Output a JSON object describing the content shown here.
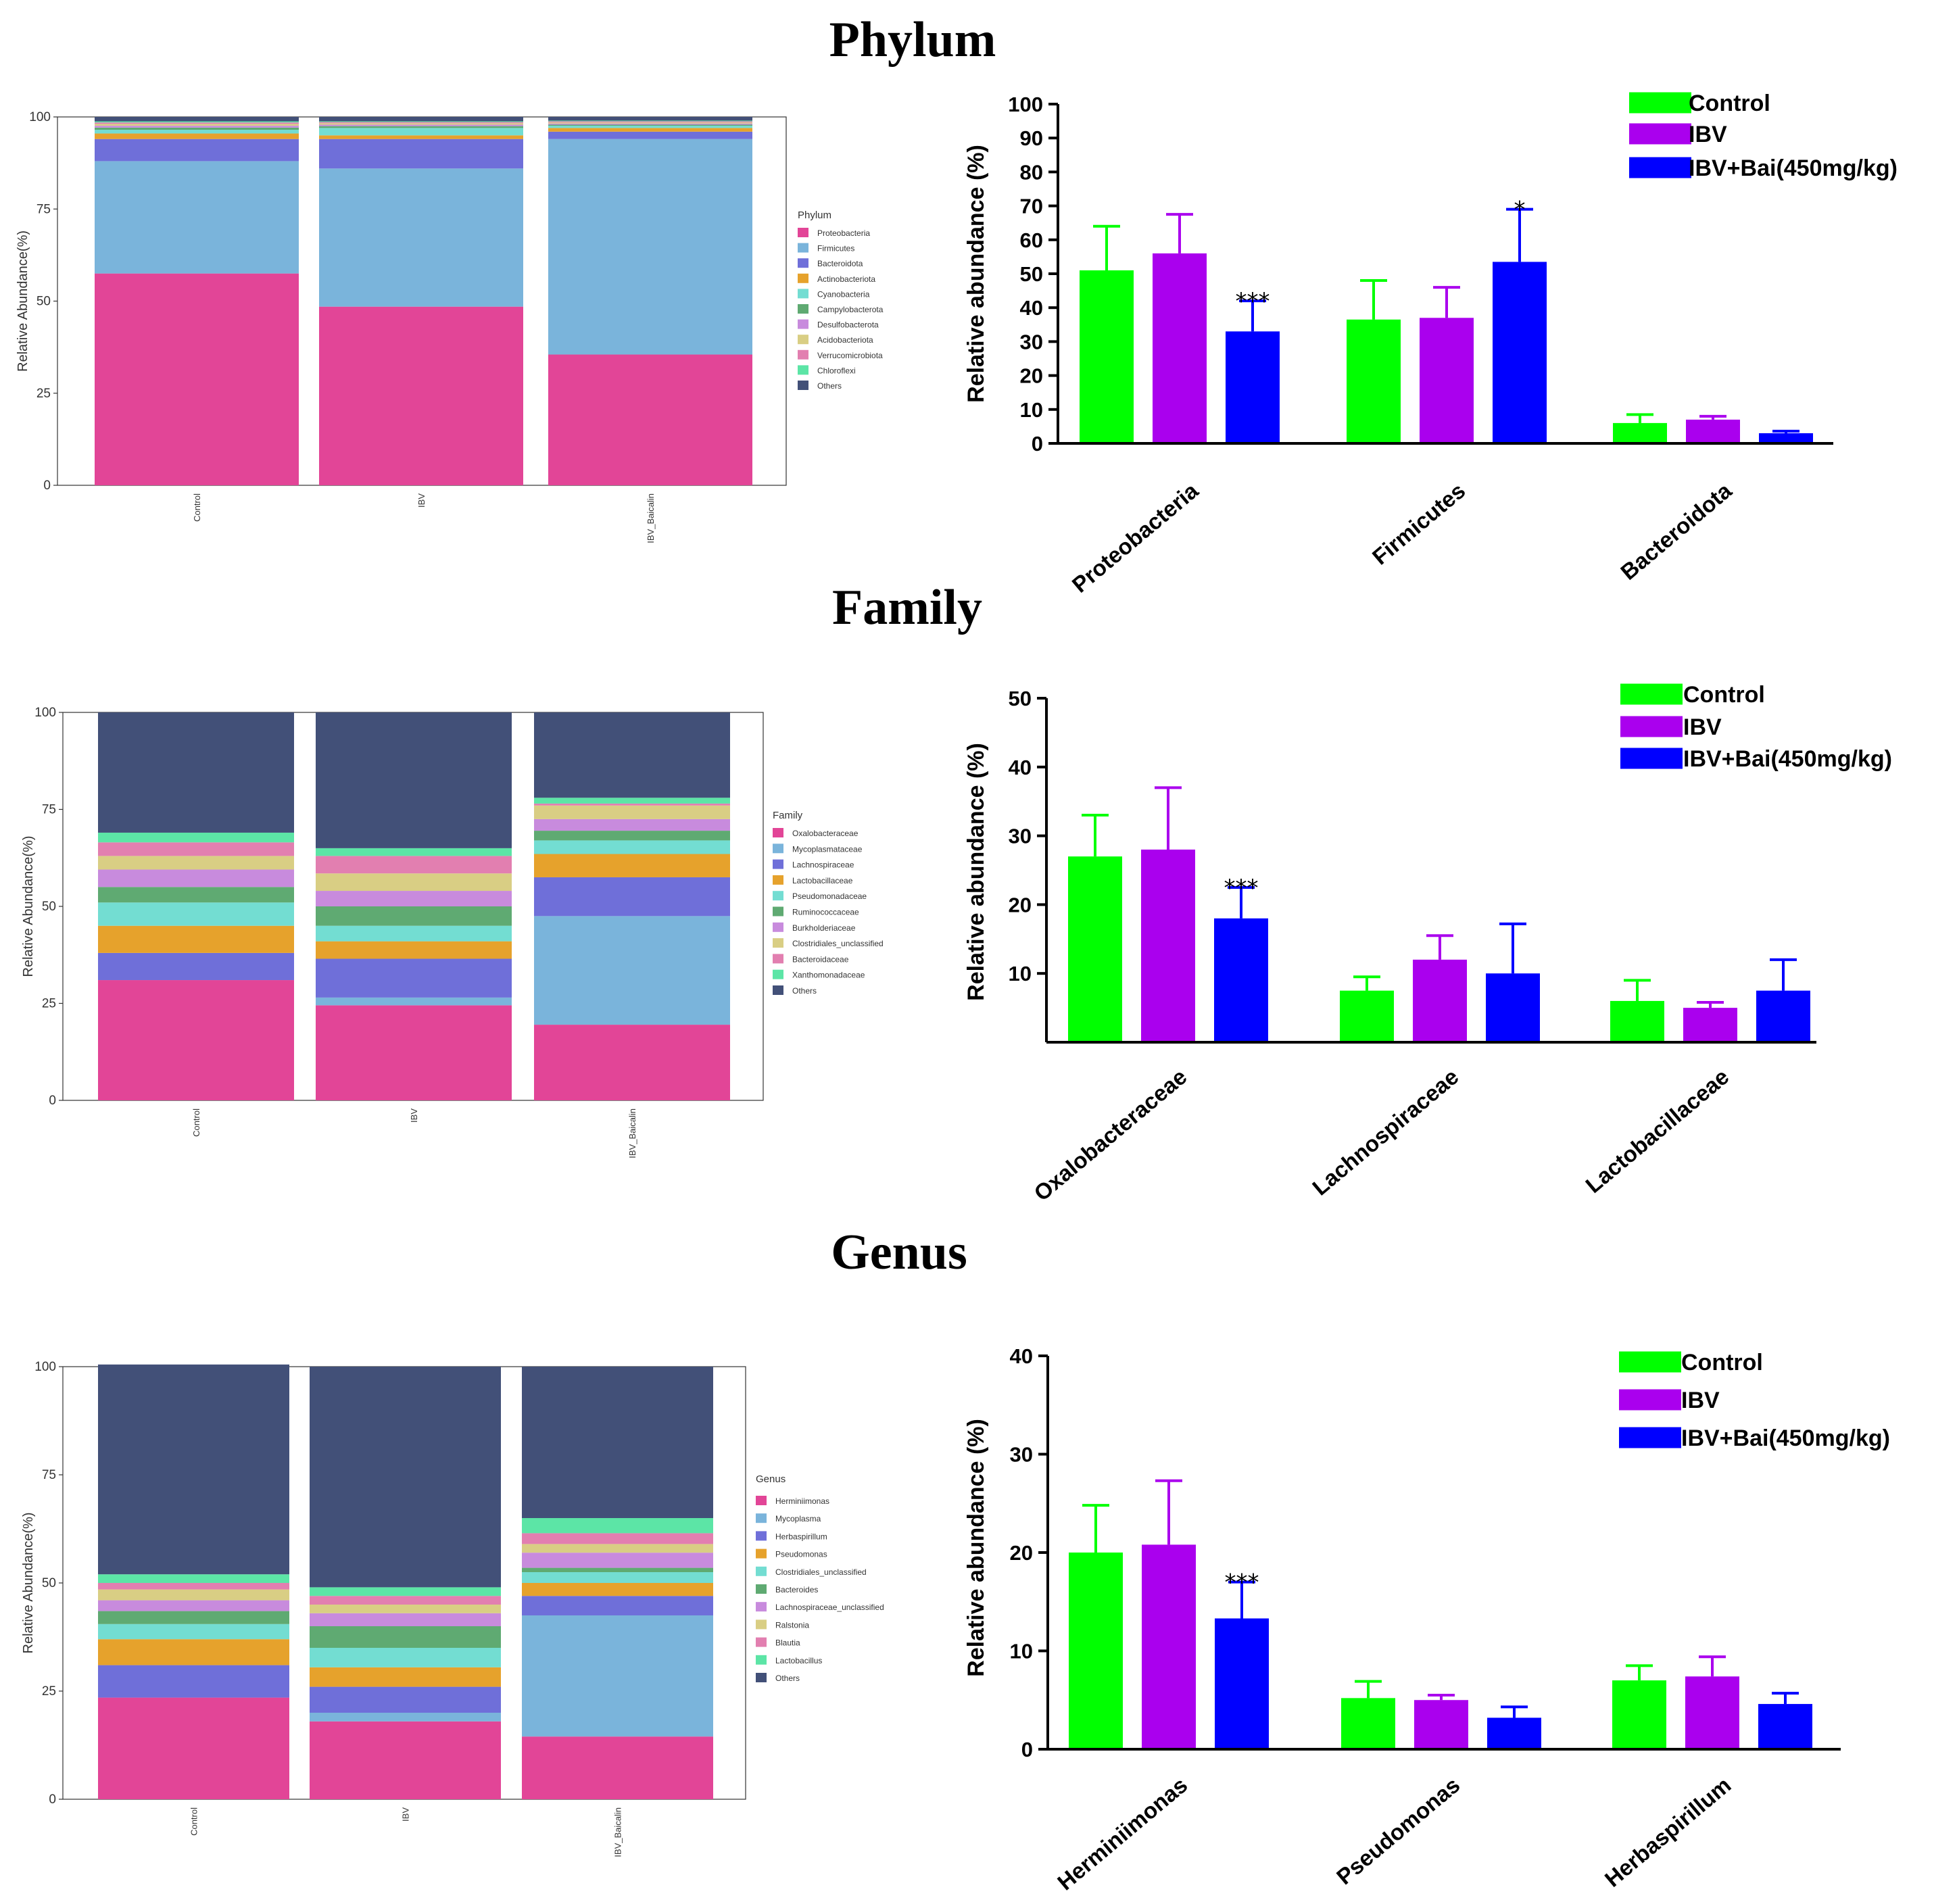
{
  "titles": [
    "Phylum",
    "Family",
    "Genus"
  ],
  "chart_data": [
    {
      "type": "bar",
      "stacked": true,
      "title": "Phylum",
      "ylabel": "Relative Abundance(%)",
      "xlabel": "",
      "ylim": [
        0,
        100
      ],
      "yticks": [
        0,
        25,
        50,
        75,
        100
      ],
      "categories": [
        "Control",
        "IBV",
        "IBV_Baicalin"
      ],
      "legend_title": "Phylum",
      "legend_position": "right",
      "series": [
        {
          "name": "Proteobacteria",
          "color": "#E24597",
          "values": [
            57.5,
            48.5,
            35.5
          ]
        },
        {
          "name": "Firmicutes",
          "color": "#7AB4DB",
          "values": [
            30.5,
            37.5,
            58.5
          ]
        },
        {
          "name": "Bacteroidota",
          "color": "#6F6FD9",
          "values": [
            6.0,
            8.0,
            2.0
          ]
        },
        {
          "name": "Actinobacteriota",
          "color": "#E6A22C",
          "values": [
            1.5,
            1.0,
            1.0
          ]
        },
        {
          "name": "Cyanobacteria",
          "color": "#73DDD2",
          "values": [
            1.0,
            2.0,
            0.6
          ]
        },
        {
          "name": "Campylobacterota",
          "color": "#5FAA72",
          "values": [
            0.6,
            0.5,
            0.3
          ]
        },
        {
          "name": "Desulfobacterota",
          "color": "#C88BDD",
          "values": [
            0.5,
            0.4,
            0.3
          ]
        },
        {
          "name": "Acidobacteriota",
          "color": "#D9CE84",
          "values": [
            0.5,
            0.4,
            0.3
          ]
        },
        {
          "name": "Verrucomicrobiota",
          "color": "#E27FB0",
          "values": [
            0.4,
            0.3,
            0.3
          ]
        },
        {
          "name": "Chloroflexi",
          "color": "#5CE5A6",
          "values": [
            0.3,
            0.2,
            0.2
          ]
        },
        {
          "name": "Others",
          "color": "#425078",
          "values": [
            1.2,
            1.2,
            1.0
          ]
        }
      ]
    },
    {
      "type": "bar",
      "title": "Phylum",
      "ylabel": "Relative abundance (%)",
      "xlabel": "",
      "ylim": [
        0,
        100
      ],
      "yticks": [
        0,
        10,
        20,
        30,
        40,
        50,
        60,
        70,
        80,
        90,
        100
      ],
      "categories": [
        "Proteobacteria",
        "Firmicutes",
        "Bacteroidota"
      ],
      "legend_position": "top-right",
      "series": [
        {
          "name": "Control",
          "color": "#00FF00",
          "values": [
            51,
            36.5,
            6
          ],
          "errors": [
            13,
            11.5,
            2.5
          ]
        },
        {
          "name": "IBV",
          "color": "#AA00EE",
          "values": [
            56,
            37,
            7
          ],
          "errors": [
            11.5,
            9,
            1
          ]
        },
        {
          "name": "IBV+Bai(450mg/kg)",
          "color": "#0000FF",
          "values": [
            33,
            53.5,
            3
          ],
          "errors": [
            9,
            15.5,
            0.6
          ]
        }
      ],
      "annotations": [
        {
          "category": "Proteobacteria",
          "series": "IBV+Bai(450mg/kg)",
          "text": "***"
        },
        {
          "category": "Firmicutes",
          "series": "IBV+Bai(450mg/kg)",
          "text": "*"
        }
      ]
    },
    {
      "type": "bar",
      "stacked": true,
      "title": "Family",
      "ylabel": "Relative Abundance(%)",
      "xlabel": "",
      "ylim": [
        0,
        100
      ],
      "yticks": [
        0,
        25,
        50,
        75,
        100
      ],
      "categories": [
        "Control",
        "IBV",
        "IBV_Baicalin"
      ],
      "legend_title": "Family",
      "legend_position": "right",
      "series": [
        {
          "name": "Oxalobacteraceae",
          "color": "#E24597",
          "values": [
            31,
            24.5,
            19.5
          ]
        },
        {
          "name": "Mycoplasmataceae",
          "color": "#7AB4DB",
          "values": [
            0,
            2,
            28
          ]
        },
        {
          "name": "Lachnospiraceae",
          "color": "#6F6FD9",
          "values": [
            7,
            10,
            10
          ]
        },
        {
          "name": "Lactobacillaceae",
          "color": "#E6A22C",
          "values": [
            7,
            4.5,
            6
          ]
        },
        {
          "name": "Pseudomonadaceae",
          "color": "#73DDD2",
          "values": [
            6,
            4,
            3.5
          ]
        },
        {
          "name": "Ruminococcaceae",
          "color": "#5FAA72",
          "values": [
            4,
            5,
            2.5
          ]
        },
        {
          "name": "Burkholderiaceae",
          "color": "#C88BDD",
          "values": [
            4.5,
            4,
            3
          ]
        },
        {
          "name": "Clostridiales_unclassified",
          "color": "#D9CE84",
          "values": [
            3.5,
            4.5,
            3.5
          ]
        },
        {
          "name": "Bacteroidaceae",
          "color": "#E27FB0",
          "values": [
            3.5,
            4.5,
            0.5
          ]
        },
        {
          "name": "Xanthomonadaceae",
          "color": "#5CE5A6",
          "values": [
            2.5,
            2,
            1.5
          ]
        },
        {
          "name": "Others",
          "color": "#425078",
          "values": [
            31,
            35,
            22
          ]
        }
      ]
    },
    {
      "type": "bar",
      "title": "Family",
      "ylabel": "Relative abundance (%)",
      "xlabel": "",
      "ylim": [
        0,
        50
      ],
      "yticks": [
        10,
        20,
        30,
        40,
        50
      ],
      "categories": [
        "Oxalobacteraceae",
        "Lachnospiraceae",
        "Lactobacillaceae"
      ],
      "legend_position": "top-right",
      "series": [
        {
          "name": "Control",
          "color": "#00FF00",
          "values": [
            27,
            7.5,
            6
          ],
          "errors": [
            6,
            2,
            3
          ]
        },
        {
          "name": "IBV",
          "color": "#AA00EE",
          "values": [
            28,
            12,
            5
          ],
          "errors": [
            9,
            3.5,
            0.8
          ]
        },
        {
          "name": "IBV+Bai(450mg/kg)",
          "color": "#0000FF",
          "values": [
            18,
            10,
            7.5
          ],
          "errors": [
            4.5,
            7.2,
            4.5
          ]
        }
      ],
      "annotations": [
        {
          "category": "Oxalobacteraceae",
          "series": "IBV+Bai(450mg/kg)",
          "text": "***"
        }
      ]
    },
    {
      "type": "bar",
      "stacked": true,
      "title": "Genus",
      "ylabel": "Relative Abundance(%)",
      "xlabel": "",
      "ylim": [
        0,
        100
      ],
      "yticks": [
        0,
        25,
        50,
        75,
        100
      ],
      "categories": [
        "Control",
        "IBV",
        "IBV_Baicalin"
      ],
      "legend_title": "Genus",
      "legend_position": "right",
      "series": [
        {
          "name": "Herminiimonas",
          "color": "#E24597",
          "values": [
            23.5,
            18,
            14.5
          ]
        },
        {
          "name": "Mycoplasma",
          "color": "#7AB4DB",
          "values": [
            0,
            2,
            28
          ]
        },
        {
          "name": "Herbaspirillum",
          "color": "#6F6FD9",
          "values": [
            7.5,
            6,
            4.5
          ]
        },
        {
          "name": "Pseudomonas",
          "color": "#E6A22C",
          "values": [
            6,
            4.5,
            3
          ]
        },
        {
          "name": "Clostridiales_unclassified",
          "color": "#73DDD2",
          "values": [
            3.5,
            4.5,
            2.5
          ]
        },
        {
          "name": "Bacteroides",
          "color": "#5FAA72",
          "values": [
            3,
            5,
            1
          ]
        },
        {
          "name": "Lachnospiraceae_unclassified",
          "color": "#C88BDD",
          "values": [
            2.5,
            3,
            3.5
          ]
        },
        {
          "name": "Ralstonia",
          "color": "#D9CE84",
          "values": [
            2.5,
            2,
            2
          ]
        },
        {
          "name": "Blautia",
          "color": "#E27FB0",
          "values": [
            1.5,
            2,
            2.5
          ]
        },
        {
          "name": "Lactobacillus",
          "color": "#5CE5A6",
          "values": [
            2,
            2,
            3.5
          ]
        },
        {
          "name": "Others",
          "color": "#425078",
          "values": [
            48.5,
            51,
            35
          ]
        }
      ]
    },
    {
      "type": "bar",
      "title": "Genus",
      "ylabel": "Relative abundance (%)",
      "xlabel": "",
      "ylim": [
        0,
        40
      ],
      "yticks": [
        0,
        10,
        20,
        30,
        40
      ],
      "categories": [
        "Herminiimonas",
        "Pseudomonas",
        "Herbaspirillum"
      ],
      "legend_position": "top-right",
      "series": [
        {
          "name": "Control",
          "color": "#00FF00",
          "values": [
            20,
            5.2,
            7
          ],
          "errors": [
            4.8,
            1.7,
            1.5
          ]
        },
        {
          "name": "IBV",
          "color": "#AA00EE",
          "values": [
            20.8,
            5,
            7.4
          ],
          "errors": [
            6.5,
            0.5,
            2
          ]
        },
        {
          "name": "IBV+Bai(450mg/kg)",
          "color": "#0000FF",
          "values": [
            13.3,
            3.2,
            4.6
          ],
          "errors": [
            3.7,
            1.1,
            1.1
          ]
        }
      ],
      "annotations": [
        {
          "category": "Herminiimonas",
          "series": "IBV+Bai(450mg/kg)",
          "text": "***"
        }
      ]
    }
  ]
}
